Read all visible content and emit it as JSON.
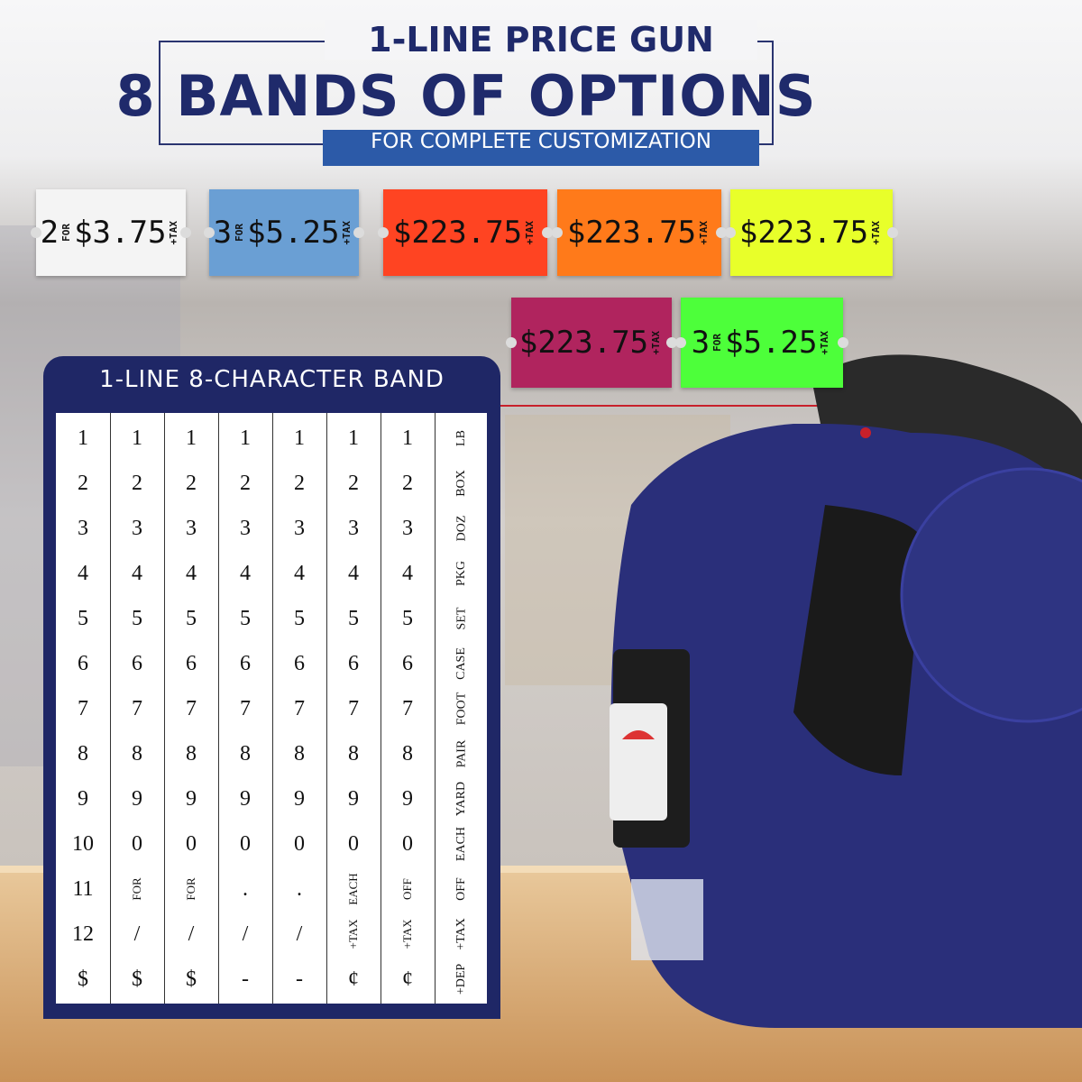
{
  "header": {
    "title": "1-LINE PRICE GUN",
    "headline": "8 BANDS OF OPTIONS",
    "subtitle": "FOR COMPLETE CUSTOMIZATION"
  },
  "labels": [
    {
      "color": "#f4f4f4",
      "prefix": "2",
      "for": "FOR",
      "price": "$3.75",
      "tax": "+TAX"
    },
    {
      "color": "#6a9fd4",
      "prefix": "3",
      "for": "FOR",
      "price": "$5.25",
      "tax": "+TAX"
    },
    {
      "color": "#ff4422",
      "price": "$223.75",
      "tax": "+TAX"
    },
    {
      "color": "#ff7a1a",
      "price": "$223.75",
      "tax": "+TAX"
    },
    {
      "color": "#e8ff2a",
      "price": "$223.75",
      "tax": "+TAX"
    },
    {
      "color": "#b0245e",
      "price": "$223.75",
      "tax": "+TAX"
    },
    {
      "color": "#4dff3a",
      "prefix": "3",
      "for": "FOR",
      "price": "$5.25",
      "tax": "+TAX"
    }
  ],
  "band": {
    "title": "1-LINE 8-CHARACTER BAND",
    "columns": [
      [
        "1",
        "2",
        "3",
        "4",
        "5",
        "6",
        "7",
        "8",
        "9",
        "10",
        "11",
        "12",
        "$"
      ],
      [
        "1",
        "2",
        "3",
        "4",
        "5",
        "6",
        "7",
        "8",
        "9",
        "0",
        "FOR",
        "/",
        "$"
      ],
      [
        "1",
        "2",
        "3",
        "4",
        "5",
        "6",
        "7",
        "8",
        "9",
        "0",
        "FOR",
        "/",
        "$"
      ],
      [
        "1",
        "2",
        "3",
        "4",
        "5",
        "6",
        "7",
        "8",
        "9",
        "0",
        ".",
        "/",
        "-"
      ],
      [
        "1",
        "2",
        "3",
        "4",
        "5",
        "6",
        "7",
        "8",
        "9",
        "0",
        ".",
        "/",
        "-"
      ],
      [
        "1",
        "2",
        "3",
        "4",
        "5",
        "6",
        "7",
        "8",
        "9",
        "0",
        "EACH",
        "+TAX",
        "¢"
      ],
      [
        "1",
        "2",
        "3",
        "4",
        "5",
        "6",
        "7",
        "8",
        "9",
        "0",
        "OFF",
        "+TAX",
        "¢"
      ],
      [
        "LB",
        "BOX",
        "DOZ",
        "PKG",
        "SET",
        "CASE",
        "FOOT",
        "PAIR",
        "YARD",
        "EACH",
        "OFF",
        "+TAX",
        "+DEP"
      ]
    ]
  }
}
